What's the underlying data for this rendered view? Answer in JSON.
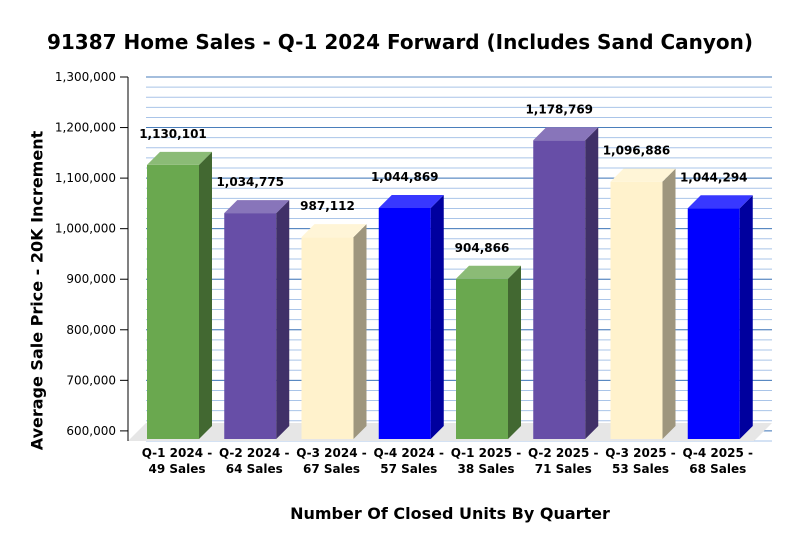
{
  "chart_data": {
    "type": "bar",
    "title": "91387 Home Sales - Q-1 2024 Forward (Includes Sand Canyon)",
    "xlabel": "Number Of Closed Units By Quarter",
    "ylabel": "Average Sale Price - 20K Increment",
    "ylim": [
      580000,
      1300000
    ],
    "yticks": [
      600000,
      700000,
      800000,
      900000,
      1000000,
      1100000,
      1200000,
      1300000
    ],
    "ytick_labels": [
      "600,000",
      "700,000",
      "800,000",
      "900,000",
      "1,000,000",
      "1,100,000",
      "1,200,000",
      "1,300,000"
    ],
    "minor_gridline_step": 20000,
    "grid": true,
    "categories": [
      [
        "Q-1 2024 -",
        "49 Sales"
      ],
      [
        "Q-2 2024 -",
        "64 Sales"
      ],
      [
        "Q-3 2024 -",
        "67 Sales"
      ],
      [
        "Q-4 2024 -",
        "57 Sales"
      ],
      [
        "Q-1 2025 -",
        "38 Sales"
      ],
      [
        "Q-2 2025 -",
        "71 Sales"
      ],
      [
        "Q-3 2025 -",
        "53 Sales"
      ],
      [
        "Q-4 2025 -",
        "68 Sales"
      ]
    ],
    "values": [
      1130101,
      1034775,
      987112,
      1044869,
      904866,
      1178769,
      1096886,
      1044294
    ],
    "data_labels": [
      "1,130,101",
      "1,034,775",
      "987,112",
      "1,044,869",
      "904,866",
      "1,178,769",
      "1,096,886",
      "1,044,294"
    ],
    "bar_colors": [
      "#6aa84f",
      "#674ea7",
      "#fff2cc",
      "#0000ff",
      "#6aa84f",
      "#674ea7",
      "#fff2cc",
      "#0000ff"
    ],
    "colors": {
      "gridline_major": "#4a7ebb",
      "gridline_minor": "#a9c4e8",
      "floor": "#e6e6e6"
    }
  }
}
